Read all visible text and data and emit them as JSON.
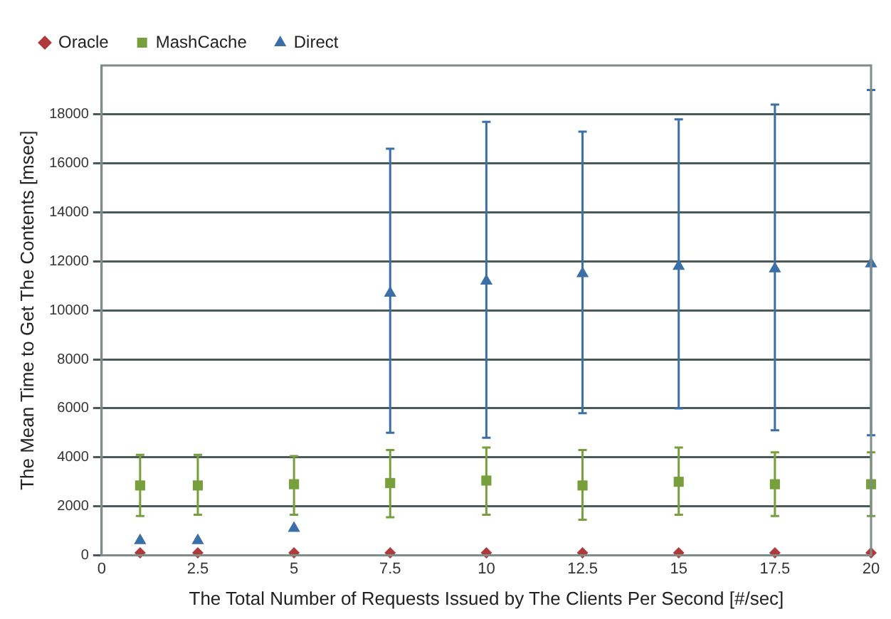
{
  "chart_data": {
    "type": "scatter",
    "xlabel": "The Total Number of Requests Issued by The Clients Per Second [#/sec]",
    "ylabel": "The Mean Time to Get The Contents [msec]",
    "x": [
      1,
      2.5,
      5,
      7.5,
      10,
      12.5,
      15,
      17.5,
      20
    ],
    "series": [
      {
        "name": "Oracle",
        "color": "#b03a3a",
        "marker": "diamond",
        "values": [
          100,
          100,
          100,
          100,
          100,
          100,
          100,
          100,
          100
        ]
      },
      {
        "name": "MashCache",
        "color": "#77a03c",
        "marker": "square",
        "values": [
          2850,
          2850,
          2900,
          2950,
          3050,
          2850,
          3000,
          2900,
          2900
        ],
        "errors": [
          [
            1600,
            4100
          ],
          [
            1650,
            4100
          ],
          [
            1650,
            4050
          ],
          [
            1550,
            4300
          ],
          [
            1650,
            4400
          ],
          [
            1450,
            4300
          ],
          [
            1650,
            4400
          ],
          [
            1600,
            4200
          ],
          [
            1600,
            4200
          ]
        ]
      },
      {
        "name": "Direct",
        "color": "#3a6fa8",
        "marker": "triangle",
        "values": [
          600,
          600,
          1100,
          10700,
          11200,
          11500,
          11800,
          11700,
          11900
        ],
        "errors": [
          null,
          null,
          null,
          [
            5000,
            16600
          ],
          [
            4800,
            17700
          ],
          [
            5800,
            17300
          ],
          [
            6000,
            17800
          ],
          [
            5100,
            18400
          ],
          [
            4900,
            19000
          ]
        ]
      }
    ],
    "xlim": [
      0,
      20
    ],
    "xticks": [
      0,
      2.5,
      5,
      7.5,
      10,
      12.5,
      15,
      17.5,
      20
    ],
    "ylim": [
      0,
      20000
    ],
    "yticks": [
      0,
      2000,
      4000,
      6000,
      8000,
      10000,
      12000,
      14000,
      16000,
      18000
    ],
    "grid": "y",
    "legend": "top left"
  }
}
